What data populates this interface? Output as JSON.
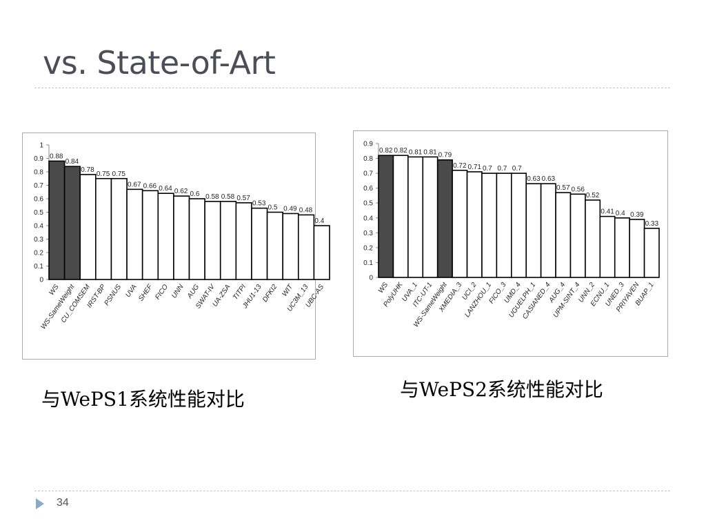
{
  "slide": {
    "title": "vs. State-of-Art",
    "page_number": "34"
  },
  "captions": {
    "left": "与WePS1系统性能对比",
    "right": "与WePS2系统性能对比"
  },
  "chart_data": [
    {
      "type": "bar",
      "categories": [
        "WS",
        "WS-SameWeight",
        "CU_COMSEM",
        "IRST-BP",
        "PSNUS",
        "UVA",
        "SHEF",
        "FICO",
        "UNN",
        "AUG",
        "SWAT-IV",
        "UA-ZSA",
        "TITPI",
        "JHU1-13",
        "DFKI2",
        "WIT",
        "UC3M_13",
        "UBC-AS"
      ],
      "values": [
        0.88,
        0.84,
        0.78,
        0.75,
        0.75,
        0.67,
        0.66,
        0.64,
        0.62,
        0.6,
        0.58,
        0.58,
        0.57,
        0.53,
        0.5,
        0.49,
        0.48,
        0.4
      ],
      "value_labels": [
        "0.88",
        "0.84",
        "0.78",
        "0.75",
        "0.75",
        "0.67",
        "0.66",
        "0.64",
        "0.62",
        "0.6",
        "0.58",
        "0.58",
        "0.57",
        "0.53",
        "0.5",
        "0.49",
        "0.48",
        "0.4"
      ],
      "highlighted": [
        "WS",
        "WS-SameWeight"
      ],
      "ylim": [
        0,
        1
      ],
      "yticks": [
        "0",
        "0.1",
        "0.2",
        "0.3",
        "0.4",
        "0.5",
        "0.6",
        "0.7",
        "0.8",
        "0.9",
        "1"
      ],
      "colors": {
        "highlight": "#4a4a4a",
        "normal": "#ffffff",
        "edge": "#000000"
      },
      "grid": false,
      "title": "",
      "xlabel": "",
      "ylabel": ""
    },
    {
      "type": "bar",
      "categories": [
        "WS",
        "PolyUHK",
        "UVA_1",
        "ITC-UT-1",
        "WS-SameWeight",
        "XMEDIA_3",
        "UCI_2",
        "LANZHOU_1",
        "FICO_3",
        "UMD_4",
        "UGUELPH_1",
        "CASIANED_4",
        "AUG_4",
        "UPM-SINT_4",
        "UNN_2",
        "ECNU_1",
        "UNED_3",
        "PRIYAVEN",
        "BUAP_1"
      ],
      "values": [
        0.82,
        0.82,
        0.81,
        0.81,
        0.79,
        0.72,
        0.71,
        0.7,
        0.7,
        0.7,
        0.63,
        0.63,
        0.57,
        0.56,
        0.52,
        0.41,
        0.4,
        0.39,
        0.33
      ],
      "value_labels": [
        "0.82",
        "0.82",
        "0.81",
        "0.81",
        "0.79",
        "0.72",
        "0.71",
        "0.7",
        "0.7",
        "0.7",
        "0.63",
        "0.63",
        "0.57",
        "0.56",
        "0.52",
        "0.41",
        "0.4",
        "0.39",
        "0.33"
      ],
      "highlighted": [
        "WS",
        "WS-SameWeight"
      ],
      "ylim": [
        0,
        0.9
      ],
      "yticks": [
        "0",
        "0.1",
        "0.2",
        "0.3",
        "0.4",
        "0.5",
        "0.6",
        "0.7",
        "0.8",
        "0.9"
      ],
      "colors": {
        "highlight": "#4a4a4a",
        "normal": "#ffffff",
        "edge": "#000000"
      },
      "grid": false,
      "title": "",
      "xlabel": "",
      "ylabel": ""
    }
  ]
}
